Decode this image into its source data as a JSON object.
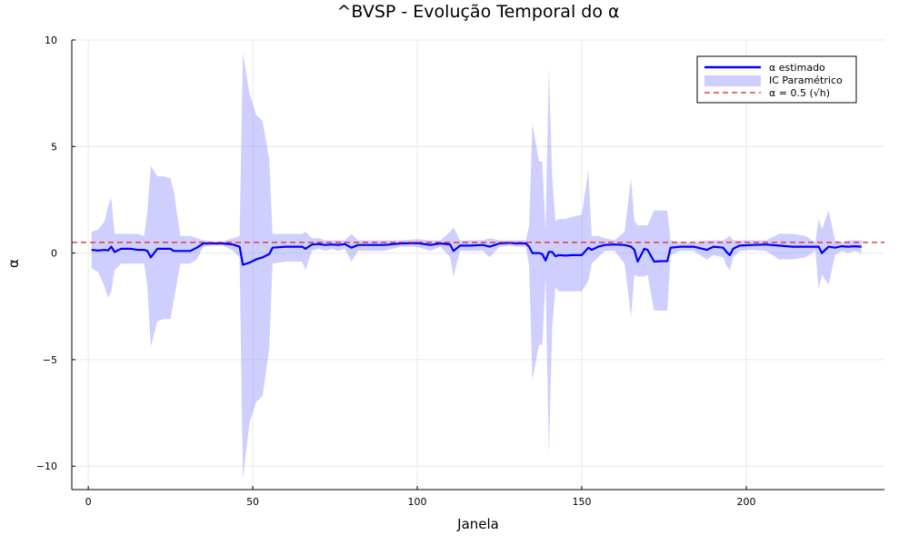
{
  "chart_data": {
    "type": "line",
    "title": "^BVSP - Evolução Temporal do α",
    "xlabel": "Janela",
    "ylabel": "α",
    "xlim": [
      -5,
      242
    ],
    "ylim": [
      -11.1,
      10
    ],
    "xticks": [
      0,
      50,
      100,
      150,
      200
    ],
    "yticks": [
      10,
      5,
      0,
      -5,
      -10
    ],
    "ytick_labels": [
      "10",
      "5",
      "0",
      "−5",
      "−10"
    ],
    "grid": true,
    "legend_position": "top-right",
    "colors": {
      "alpha_line": "#0000ff",
      "ci_band": "#8080ff",
      "reference": "#e41a1c"
    },
    "series": [
      {
        "name": "α estimado",
        "kind": "line",
        "x": [
          1,
          3,
          5,
          6,
          7,
          8,
          10,
          13,
          15,
          17,
          18,
          19,
          21,
          23,
          25,
          26,
          28,
          31,
          33,
          35,
          38,
          41,
          44,
          46,
          47,
          49,
          51,
          53,
          55,
          56,
          60,
          65,
          66,
          68,
          70,
          72,
          74,
          76,
          78,
          80,
          82,
          85,
          90,
          95,
          100,
          104,
          107,
          110,
          111,
          113,
          116,
          120,
          122,
          125,
          128,
          130,
          133,
          134,
          135,
          137,
          138,
          139,
          140,
          141,
          142,
          143,
          145,
          147,
          150,
          152,
          153,
          155,
          157,
          160,
          163,
          165,
          166,
          167,
          169,
          170,
          172,
          174,
          176,
          177,
          180,
          184,
          188,
          190,
          193,
          194,
          195,
          196,
          198,
          202,
          206,
          210,
          214,
          218,
          221,
          222,
          223,
          225,
          227,
          229,
          231,
          233,
          235
        ],
        "y": [
          0.15,
          0.12,
          0.15,
          0.12,
          0.3,
          0.05,
          0.2,
          0.2,
          0.15,
          0.15,
          0.1,
          -0.2,
          0.2,
          0.2,
          0.2,
          0.1,
          0.1,
          0.1,
          0.25,
          0.45,
          0.45,
          0.45,
          0.4,
          0.3,
          -0.55,
          -0.45,
          -0.3,
          -0.2,
          -0.05,
          0.25,
          0.3,
          0.3,
          0.2,
          0.4,
          0.42,
          0.38,
          0.4,
          0.38,
          0.42,
          0.25,
          0.38,
          0.38,
          0.38,
          0.45,
          0.47,
          0.38,
          0.45,
          0.4,
          0.1,
          0.35,
          0.35,
          0.38,
          0.3,
          0.45,
          0.48,
          0.45,
          0.45,
          0.3,
          0,
          0,
          -0.05,
          -0.35,
          0.05,
          0.05,
          -0.15,
          -0.1,
          -0.12,
          -0.1,
          -0.1,
          0.25,
          0.15,
          0.3,
          0.38,
          0.4,
          0.38,
          0.3,
          0.15,
          -0.4,
          0.2,
          0.15,
          -0.4,
          -0.38,
          -0.38,
          0.25,
          0.3,
          0.3,
          0.15,
          0.3,
          0.25,
          0.05,
          -0.1,
          0.2,
          0.35,
          0.38,
          0.4,
          0.35,
          0.3,
          0.3,
          0.3,
          0.3,
          0,
          0.3,
          0.25,
          0.32,
          0.3,
          0.32,
          0.3
        ]
      },
      {
        "name": "IC Paramétrico",
        "kind": "band",
        "x": [
          1,
          3,
          5,
          6,
          7,
          8,
          10,
          13,
          15,
          17,
          18,
          19,
          21,
          23,
          25,
          26,
          28,
          31,
          33,
          35,
          38,
          41,
          44,
          46,
          47,
          49,
          51,
          53,
          55,
          56,
          60,
          65,
          66,
          68,
          70,
          72,
          74,
          76,
          78,
          80,
          82,
          85,
          90,
          95,
          100,
          104,
          107,
          110,
          111,
          113,
          116,
          120,
          122,
          125,
          128,
          130,
          133,
          134,
          135,
          137,
          138,
          139,
          140,
          141,
          142,
          143,
          145,
          147,
          150,
          152,
          153,
          155,
          157,
          160,
          163,
          165,
          166,
          167,
          169,
          170,
          172,
          174,
          176,
          177,
          180,
          184,
          188,
          190,
          193,
          194,
          195,
          196,
          198,
          202,
          206,
          210,
          214,
          218,
          221,
          222,
          223,
          225,
          227,
          229,
          231,
          233,
          235
        ],
        "lower": [
          -0.7,
          -0.9,
          -1.6,
          -2.1,
          -1.8,
          -0.8,
          -0.5,
          -0.5,
          -0.5,
          -0.5,
          -1.6,
          -4.4,
          -3.2,
          -3.1,
          -3.1,
          -2.2,
          -0.5,
          -0.5,
          -0.3,
          0.3,
          0.35,
          0.35,
          0.1,
          -0.2,
          -10.6,
          -8.0,
          -7.0,
          -6.7,
          -4.5,
          -0.5,
          -0.4,
          -0.4,
          -0.8,
          0.1,
          0.2,
          0.1,
          0.2,
          0.1,
          0.2,
          -0.4,
          0.1,
          0.1,
          0.1,
          0.3,
          0.3,
          0.1,
          0.3,
          -0.2,
          -1.1,
          0.1,
          0.1,
          0.1,
          -0.2,
          0.3,
          0.35,
          0.3,
          0.3,
          -0.6,
          -6.0,
          -4.3,
          -4.3,
          -1.1,
          -9.5,
          -3.5,
          -1.6,
          -1.8,
          -1.8,
          -1.8,
          -1.8,
          -1.3,
          -0.5,
          -0.2,
          0.1,
          0.1,
          -0.5,
          -3.0,
          -1.0,
          -1.1,
          -1.1,
          -1.0,
          -2.7,
          -2.7,
          -2.7,
          -0.1,
          0.1,
          0.1,
          -0.3,
          -0.1,
          -0.2,
          -0.6,
          -0.8,
          -0.2,
          0.1,
          0.15,
          0.1,
          -0.3,
          -0.3,
          -0.2,
          0.1,
          -1.7,
          -1.0,
          -1.5,
          -0.1,
          0.1,
          0,
          0.1,
          0
        ],
        "upper": [
          1.0,
          1.1,
          1.5,
          2.2,
          2.6,
          0.9,
          0.9,
          0.9,
          0.9,
          0.8,
          2.0,
          4.1,
          3.6,
          3.6,
          3.5,
          2.9,
          0.8,
          0.8,
          0.7,
          0.6,
          0.55,
          0.55,
          0.7,
          0.8,
          9.4,
          7.5,
          6.5,
          6.2,
          4.4,
          0.9,
          0.9,
          0.9,
          1.0,
          0.7,
          0.7,
          0.6,
          0.6,
          0.6,
          0.6,
          0.9,
          0.6,
          0.6,
          0.6,
          0.6,
          0.65,
          0.6,
          0.6,
          1.0,
          1.2,
          0.6,
          0.6,
          0.6,
          0.7,
          0.6,
          0.6,
          0.6,
          0.6,
          1.3,
          6.1,
          4.3,
          4.3,
          1.1,
          8.7,
          3.6,
          1.5,
          1.6,
          1.6,
          1.7,
          1.8,
          3.9,
          0.8,
          0.8,
          0.7,
          0.6,
          1.0,
          3.5,
          1.5,
          1.3,
          1.3,
          1.3,
          2.0,
          2.0,
          2.0,
          0.6,
          0.5,
          0.5,
          0.6,
          0.6,
          0.6,
          0.7,
          0.8,
          0.6,
          0.6,
          0.6,
          0.6,
          0.9,
          0.9,
          0.8,
          0.5,
          1.6,
          1.1,
          2.0,
          0.6,
          0.5,
          0.6,
          0.6,
          0.6
        ]
      },
      {
        "name": "α = 0.5 (√h)",
        "kind": "hline",
        "y": 0.5
      }
    ]
  }
}
